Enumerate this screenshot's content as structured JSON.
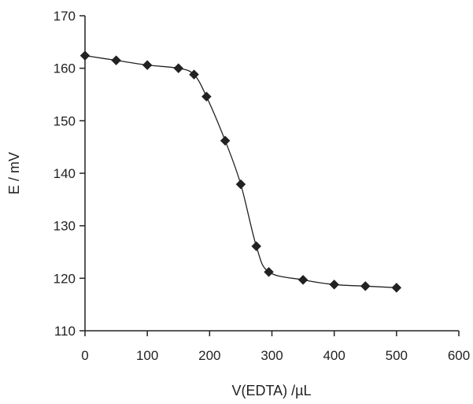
{
  "chart_data": {
    "type": "line",
    "title": "",
    "xlabel": "V(EDTA) /µL",
    "ylabel": "E / mV",
    "xlim": [
      0,
      600
    ],
    "ylim": [
      110,
      170
    ],
    "xticks": [
      "0",
      "100",
      "200",
      "300",
      "400",
      "500",
      "600"
    ],
    "yticks": [
      "110",
      "120",
      "130",
      "140",
      "150",
      "160",
      "170"
    ],
    "grid": false,
    "legend": "none",
    "series": [
      {
        "marker": "diamond",
        "line": "smooth",
        "color": "#222222",
        "x": [
          0,
          50,
          100,
          150,
          175,
          195,
          225,
          250,
          275,
          295,
          350,
          400,
          450,
          500
        ],
        "y": [
          162.4,
          161.5,
          160.6,
          160.0,
          158.8,
          154.6,
          146.2,
          137.9,
          126.1,
          121.2,
          119.7,
          118.8,
          118.5,
          118.2
        ]
      }
    ]
  }
}
